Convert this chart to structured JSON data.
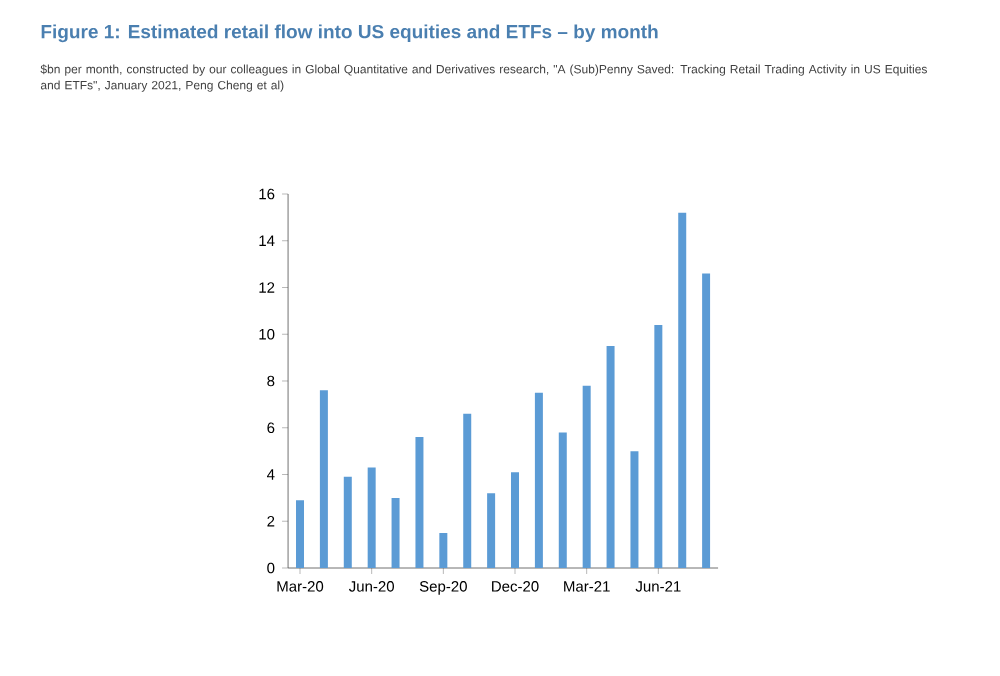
{
  "chart_data": {
    "type": "bar",
    "title": "Figure 1: Estimated retail flow into US equities and ETFs – by month",
    "subtitle": "$bn per month, constructed by our colleagues in Global Quantitative and Derivatives research, \"A (Sub)Penny Saved: Tracking Retail Trading Activity in US Equities and ETFs\", January 2021, Peng Cheng et al)",
    "categories": [
      "Mar-20",
      null,
      null,
      "Jun-20",
      null,
      null,
      "Sep-20",
      null,
      null,
      "Dec-20",
      null,
      null,
      "Mar-21",
      null,
      null,
      "Jun-21",
      null,
      null
    ],
    "values": [
      2.9,
      7.6,
      3.9,
      4.3,
      3.0,
      5.6,
      1.5,
      6.6,
      3.2,
      4.1,
      7.5,
      5.8,
      7.8,
      9.5,
      5.0,
      10.4,
      15.2,
      12.6
    ],
    "color": "#5b9bd5",
    "ylim": [
      0,
      16
    ],
    "yticks": [
      0,
      2,
      4,
      6,
      8,
      10,
      12,
      14,
      16
    ]
  }
}
